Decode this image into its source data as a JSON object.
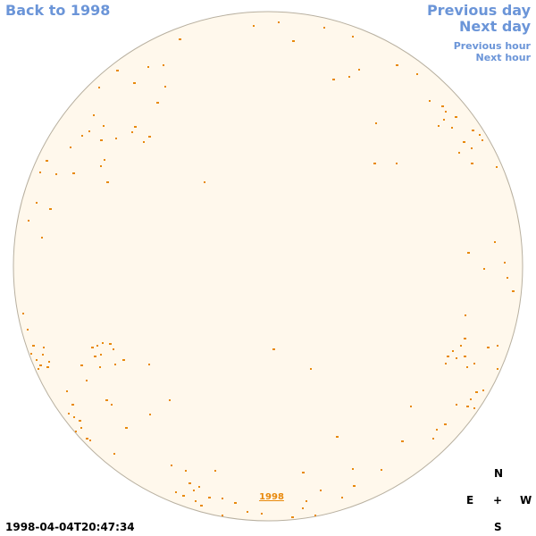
{
  "nav": {
    "back_label": "Back to 1998",
    "prev_day_label": "Previous day",
    "next_day_label": "Next day",
    "prev_hour_label": "Previous hour",
    "next_hour_label": "Next hour"
  },
  "timestamp": "1998-04-04T20:47:34",
  "disk": {
    "label": "1998",
    "fill_color": "#fff8ec",
    "border_color": "#b8b0a0",
    "mark_color": "#e8890c"
  },
  "compass": {
    "north": "N",
    "south": "S",
    "east": "E",
    "west": "W",
    "center": "+"
  },
  "colors": {
    "link": "#6b95d8"
  }
}
